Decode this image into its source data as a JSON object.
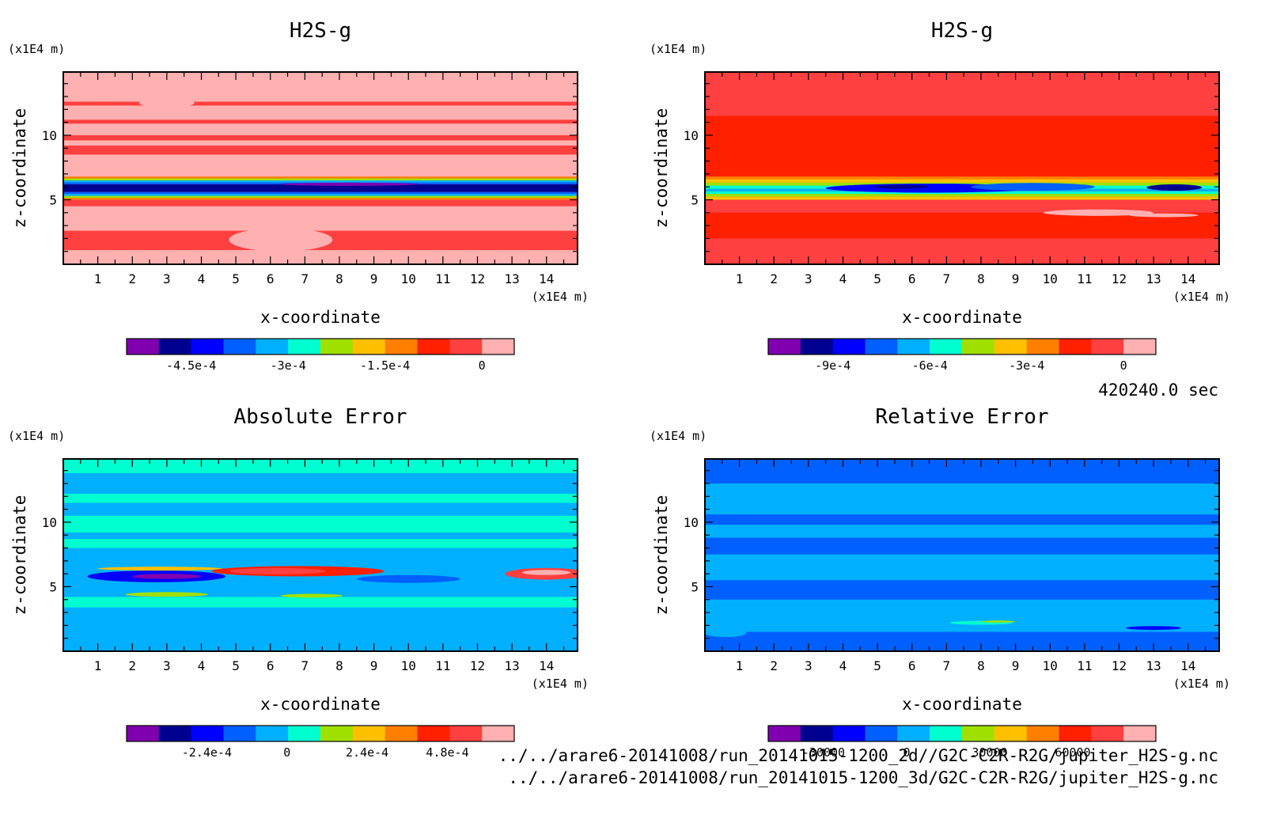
{
  "time_label": "420240.0 sec",
  "footer": {
    "line1": "../../arare6-20141008/run_20141015-1200_2d//G2C-C2R-R2G/jupiter_H2S-g.nc",
    "line2": "../../arare6-20141008/run_20141015-1200_3d/G2C-C2R-R2G/jupiter_H2S-g.nc"
  },
  "palette": [
    "#8000b0",
    "#000090",
    "#0000ff",
    "#0060ff",
    "#00b0ff",
    "#00ffd0",
    "#a0e000",
    "#ffc000",
    "#ff8000",
    "#ff2000",
    "#ff4040",
    "#ffb0b0"
  ],
  "chart_data": [
    {
      "type": "heatmap",
      "title": "H2S-g",
      "xlabel": "x-coordinate",
      "ylabel": "z-coordinate",
      "x_unit": "(x1E4 m)",
      "y_unit": "(x1E4 m)",
      "xlim": [
        0,
        14.9
      ],
      "ylim": [
        0,
        14.9
      ],
      "x_ticks": [
        1,
        2,
        3,
        4,
        5,
        6,
        7,
        8,
        9,
        10,
        11,
        12,
        13,
        14
      ],
      "y_ticks": [
        5,
        10
      ],
      "colorbar_ticks": [
        "-4.5e-4",
        "-3e-4",
        "-1.5e-4",
        "0"
      ],
      "colorbar_ticks_value": [
        -0.00045,
        -0.0003,
        -0.00015,
        0
      ],
      "colorbar_range": [
        -0.00055,
        5e-05
      ],
      "background_level": 11,
      "bands": [
        {
          "z": [
            1.1,
            2.6
          ],
          "level": 10
        },
        {
          "z": [
            4.5,
            5.0
          ],
          "level": 10
        },
        {
          "z": [
            5.0,
            5.15
          ],
          "level": 8
        },
        {
          "z": [
            5.15,
            5.3
          ],
          "level": 6
        },
        {
          "z": [
            5.3,
            5.45
          ],
          "level": 4
        },
        {
          "z": [
            5.45,
            5.6
          ],
          "level": 3
        },
        {
          "z": [
            5.6,
            6.2
          ],
          "level": 1
        },
        {
          "z": [
            6.2,
            6.35
          ],
          "level": 3
        },
        {
          "z": [
            6.35,
            6.5
          ],
          "level": 4
        },
        {
          "z": [
            6.5,
            6.65
          ],
          "level": 6
        },
        {
          "z": [
            6.65,
            6.8
          ],
          "level": 8
        },
        {
          "z": [
            8.5,
            9.2
          ],
          "level": 10
        },
        {
          "z": [
            9.6,
            10.0
          ],
          "level": 10
        },
        {
          "z": [
            10.9,
            11.2
          ],
          "level": 10
        },
        {
          "z": [
            12.3,
            12.6
          ],
          "level": 10
        }
      ],
      "blobs": [
        {
          "x": 8.3,
          "z": 6.2,
          "rx": 2.0,
          "rz": 0.12,
          "level": 0
        },
        {
          "x": 6.3,
          "z": 1.9,
          "rx": 1.5,
          "rz": 0.9,
          "level": 11
        },
        {
          "x": 3.0,
          "z": 12.5,
          "rx": 0.8,
          "rz": 0.35,
          "level": 11
        }
      ]
    },
    {
      "type": "heatmap",
      "title": "H2S-g",
      "xlabel": "x-coordinate",
      "ylabel": "z-coordinate",
      "x_unit": "(x1E4 m)",
      "y_unit": "(x1E4 m)",
      "xlim": [
        0,
        14.9
      ],
      "ylim": [
        0,
        14.9
      ],
      "x_ticks": [
        1,
        2,
        3,
        4,
        5,
        6,
        7,
        8,
        9,
        10,
        11,
        12,
        13,
        14
      ],
      "y_ticks": [
        5,
        10
      ],
      "colorbar_ticks": [
        "-9e-4",
        "-6e-4",
        "-3e-4",
        "0"
      ],
      "colorbar_ticks_value": [
        -0.0009,
        -0.0006,
        -0.0003,
        0
      ],
      "colorbar_range": [
        -0.0011,
        0.0001
      ],
      "background_level": 10,
      "bands": [
        {
          "z": [
            2.0,
            4.0
          ],
          "level": 9
        },
        {
          "z": [
            6.4,
            11.5
          ],
          "level": 9
        },
        {
          "z": [
            5.0,
            5.25
          ],
          "level": 7
        },
        {
          "z": [
            5.25,
            5.45
          ],
          "level": 6
        },
        {
          "z": [
            5.45,
            5.65
          ],
          "level": 5
        },
        {
          "z": [
            5.65,
            5.85
          ],
          "level": 4
        },
        {
          "z": [
            5.85,
            6.1
          ],
          "level": 5
        },
        {
          "z": [
            6.1,
            6.35
          ],
          "level": 6
        },
        {
          "z": [
            6.35,
            6.6
          ],
          "level": 7
        },
        {
          "z": [
            6.6,
            6.8
          ],
          "level": 8
        }
      ],
      "blobs": [
        {
          "x": 6.5,
          "z": 5.9,
          "rx": 3.0,
          "rz": 0.35,
          "level": 2
        },
        {
          "x": 9.5,
          "z": 6.0,
          "rx": 1.8,
          "rz": 0.3,
          "level": 3
        },
        {
          "x": 13.6,
          "z": 5.95,
          "rx": 0.8,
          "rz": 0.25,
          "level": 1
        },
        {
          "x": 5.7,
          "z": 6.0,
          "rx": 0.8,
          "rz": 0.15,
          "level": 1
        },
        {
          "x": 11.4,
          "z": 4.0,
          "rx": 1.6,
          "rz": 0.25,
          "level": 11
        },
        {
          "x": 13.3,
          "z": 3.8,
          "rx": 1.0,
          "rz": 0.15,
          "level": 11
        }
      ]
    },
    {
      "type": "heatmap",
      "title": "Absolute Error",
      "xlabel": "x-coordinate",
      "ylabel": "z-coordinate",
      "x_unit": "(x1E4 m)",
      "y_unit": "(x1E4 m)",
      "xlim": [
        0,
        14.9
      ],
      "ylim": [
        0,
        14.9
      ],
      "x_ticks": [
        1,
        2,
        3,
        4,
        5,
        6,
        7,
        8,
        9,
        10,
        11,
        12,
        13,
        14
      ],
      "y_ticks": [
        5,
        10
      ],
      "colorbar_ticks": [
        "-2.4e-4",
        "0",
        "2.4e-4",
        "4.8e-4"
      ],
      "colorbar_ticks_value": [
        -0.00024,
        0,
        0.00024,
        0.00048
      ],
      "colorbar_range": [
        -0.00048,
        0.00068
      ],
      "background_level": 4,
      "bands": [
        {
          "z": [
            3.4,
            4.2
          ],
          "level": 5
        },
        {
          "z": [
            8.0,
            8.7
          ],
          "level": 5
        },
        {
          "z": [
            9.2,
            10.5
          ],
          "level": 5
        },
        {
          "z": [
            11.5,
            12.2
          ],
          "level": 5
        },
        {
          "z": [
            13.8,
            14.9
          ],
          "level": 5
        }
      ],
      "blobs": [
        {
          "x": 2.7,
          "z": 5.8,
          "rx": 2.0,
          "rz": 0.45,
          "level": 2
        },
        {
          "x": 3.0,
          "z": 5.8,
          "rx": 1.0,
          "rz": 0.2,
          "level": 0
        },
        {
          "x": 10.0,
          "z": 5.6,
          "rx": 1.5,
          "rz": 0.3,
          "level": 3
        },
        {
          "x": 2.8,
          "z": 6.4,
          "rx": 1.8,
          "rz": 0.15,
          "level": 7
        },
        {
          "x": 6.8,
          "z": 6.2,
          "rx": 2.5,
          "rz": 0.4,
          "level": 9
        },
        {
          "x": 6.2,
          "z": 6.2,
          "rx": 1.4,
          "rz": 0.25,
          "level": 10
        },
        {
          "x": 14.0,
          "z": 6.0,
          "rx": 1.2,
          "rz": 0.45,
          "level": 10
        },
        {
          "x": 14.0,
          "z": 6.1,
          "rx": 0.7,
          "rz": 0.2,
          "level": 11
        },
        {
          "x": 3.0,
          "z": 4.4,
          "rx": 1.2,
          "rz": 0.18,
          "level": 6
        },
        {
          "x": 7.2,
          "z": 4.3,
          "rx": 0.9,
          "rz": 0.15,
          "level": 6
        }
      ]
    },
    {
      "type": "heatmap",
      "title": "Relative Error",
      "xlabel": "x-coordinate",
      "ylabel": "z-coordinate",
      "x_unit": "(x1E4 m)",
      "y_unit": "(x1E4 m)",
      "xlim": [
        0,
        14.9
      ],
      "ylim": [
        0,
        14.9
      ],
      "x_ticks": [
        1,
        2,
        3,
        4,
        5,
        6,
        7,
        8,
        9,
        10,
        11,
        12,
        13,
        14
      ],
      "y_ticks": [
        5,
        10
      ],
      "colorbar_ticks": [
        "-30000",
        "0",
        "30000",
        "60000"
      ],
      "colorbar_ticks_value": [
        -30000,
        0,
        30000,
        60000
      ],
      "colorbar_range": [
        -50000,
        90000
      ],
      "background_level": 3,
      "bands": [
        {
          "z": [
            1.5,
            4.0
          ],
          "level": 4
        },
        {
          "z": [
            5.5,
            7.5
          ],
          "level": 4
        },
        {
          "z": [
            8.8,
            9.8
          ],
          "level": 4
        },
        {
          "z": [
            10.6,
            13.0
          ],
          "level": 4
        }
      ],
      "blobs": [
        {
          "x": 8.0,
          "z": 2.2,
          "rx": 0.9,
          "rz": 0.15,
          "level": 5
        },
        {
          "x": 8.5,
          "z": 2.3,
          "rx": 0.5,
          "rz": 0.08,
          "level": 6
        },
        {
          "x": 13.0,
          "z": 1.8,
          "rx": 0.8,
          "rz": 0.15,
          "level": 2
        },
        {
          "x": 0.6,
          "z": 1.4,
          "rx": 0.6,
          "rz": 0.3,
          "level": 4
        }
      ]
    }
  ]
}
